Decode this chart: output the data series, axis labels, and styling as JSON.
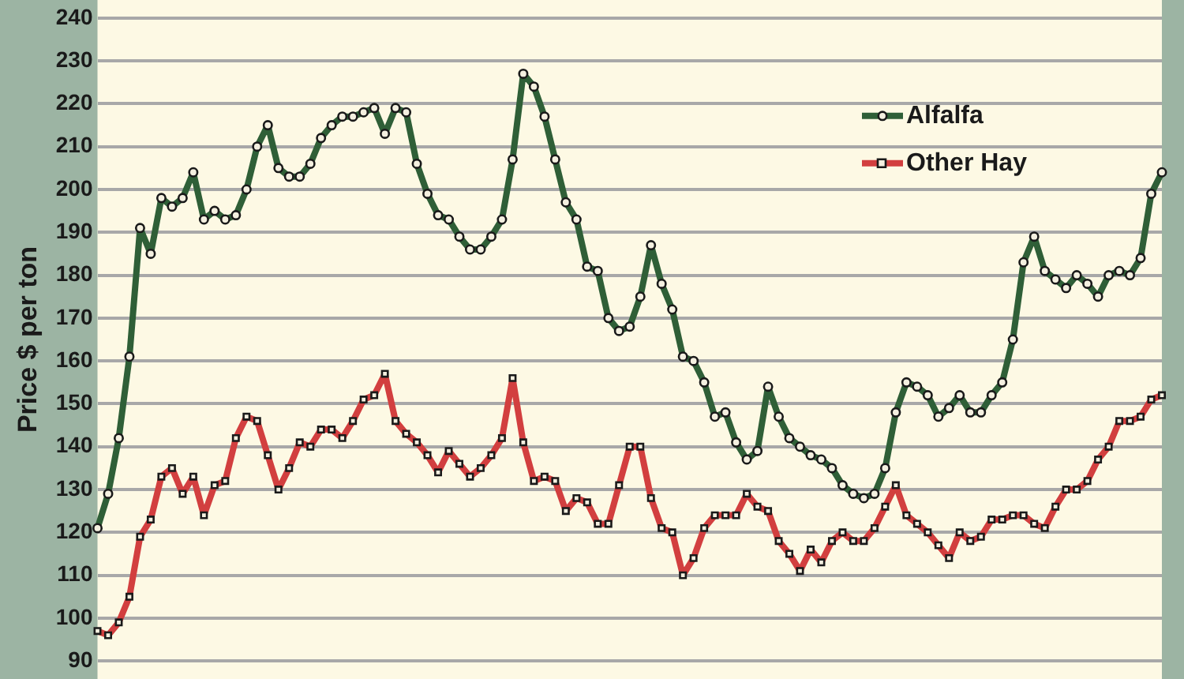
{
  "chart_data": {
    "type": "line",
    "ylabel": "Price $ per ton",
    "categories": [
      null,
      null,
      null,
      null,
      null,
      null,
      null,
      null,
      null,
      null,
      null,
      null,
      null,
      null,
      null,
      null,
      null,
      null,
      null,
      null,
      null,
      null,
      null,
      null,
      null,
      null,
      null,
      null,
      null,
      null,
      null,
      null,
      null,
      null,
      null,
      null,
      null,
      null,
      null,
      null,
      null,
      null,
      null,
      null,
      null,
      null,
      null,
      null,
      null,
      null,
      null,
      null,
      null,
      null,
      null,
      null,
      null,
      null,
      null,
      null,
      null,
      null,
      null,
      null,
      null,
      null,
      null,
      null,
      null,
      null,
      null,
      null,
      null,
      null,
      null,
      null,
      null,
      null,
      null,
      null,
      null,
      null,
      null,
      null,
      null,
      null,
      null,
      null,
      null,
      null,
      null,
      null,
      null,
      null,
      null,
      null,
      null,
      null,
      null,
      null,
      null
    ],
    "series": [
      {
        "name": "Alfalfa",
        "color": "#2f5f37",
        "marker": "circle",
        "values": [
          121,
          129,
          142,
          161,
          191,
          185,
          198,
          196,
          198,
          204,
          193,
          195,
          193,
          194,
          200,
          210,
          215,
          205,
          203,
          203,
          206,
          212,
          215,
          217,
          217,
          218,
          219,
          213,
          219,
          218,
          206,
          199,
          194,
          193,
          189,
          186,
          186,
          189,
          193,
          207,
          227,
          224,
          217,
          207,
          197,
          193,
          182,
          181,
          170,
          167,
          168,
          175,
          187,
          178,
          172,
          161,
          160,
          155,
          147,
          148,
          141,
          137,
          139,
          154,
          147,
          142,
          140,
          138,
          137,
          135,
          131,
          129,
          128,
          129,
          135,
          148,
          155,
          154,
          152,
          147,
          149,
          152,
          148,
          148,
          152,
          155,
          165,
          183,
          189,
          181,
          179,
          177,
          180,
          178,
          175,
          180,
          181,
          180,
          184,
          199,
          204
        ]
      },
      {
        "name": "Other Hay",
        "color": "#d23f3f",
        "marker": "square",
        "values": [
          97,
          96,
          99,
          105,
          119,
          123,
          133,
          135,
          129,
          133,
          124,
          131,
          132,
          142,
          147,
          146,
          138,
          130,
          135,
          141,
          140,
          144,
          144,
          142,
          146,
          151,
          152,
          157,
          146,
          143,
          141,
          138,
          134,
          139,
          136,
          133,
          135,
          138,
          142,
          156,
          141,
          132,
          133,
          132,
          125,
          128,
          127,
          122,
          122,
          131,
          140,
          140,
          128,
          121,
          120,
          110,
          114,
          121,
          124,
          124,
          124,
          129,
          126,
          125,
          118,
          115,
          111,
          116,
          113,
          118,
          120,
          118,
          118,
          121,
          126,
          131,
          124,
          122,
          120,
          117,
          114,
          120,
          118,
          119,
          123,
          123,
          124,
          124,
          122,
          121,
          126,
          130,
          130,
          132,
          137,
          140,
          146,
          146,
          147,
          151,
          152
        ]
      }
    ],
    "ylim": [
      90,
      240
    ],
    "yticks": [
      90,
      100,
      110,
      120,
      130,
      140,
      150,
      160,
      170,
      180,
      190,
      200,
      210,
      220,
      230,
      240
    ],
    "grid": "y",
    "legend": "top right",
    "line_style": "solid"
  }
}
